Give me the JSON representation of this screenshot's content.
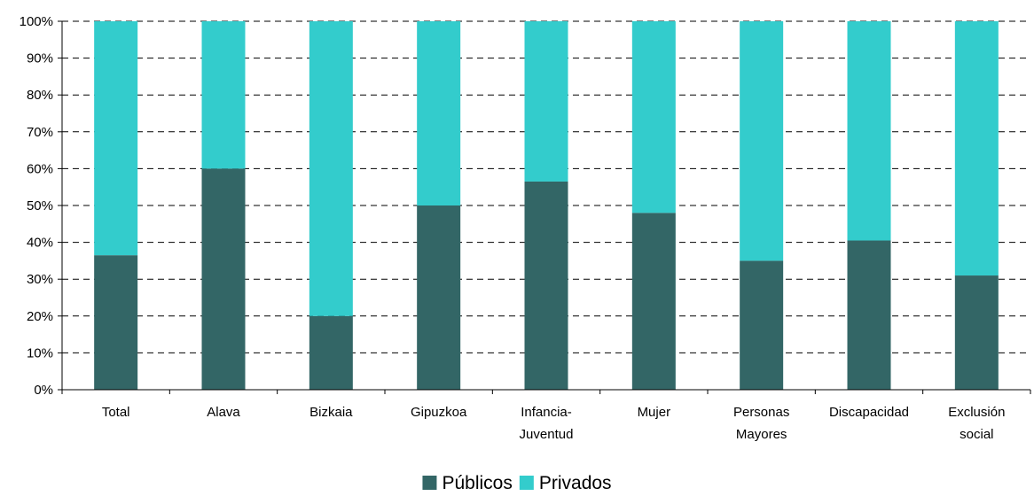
{
  "chart_data": {
    "type": "bar",
    "stacked": true,
    "percent": true,
    "categories": [
      [
        "Total"
      ],
      [
        "Alava"
      ],
      [
        "Bizkaia"
      ],
      [
        "Gipuzkoa"
      ],
      [
        "Infancia-",
        "Juventud"
      ],
      [
        "Mujer"
      ],
      [
        "Personas",
        "Mayores"
      ],
      [
        "Discapacidad"
      ],
      [
        "Exclusión",
        "social"
      ]
    ],
    "series": [
      {
        "name": "Públicos",
        "color": "#336666",
        "values": [
          36.5,
          60.0,
          20.0,
          50.0,
          56.5,
          48.0,
          35.0,
          40.5,
          31.0
        ]
      },
      {
        "name": "Privados",
        "color": "#33CCCC",
        "values": [
          63.5,
          40.0,
          80.0,
          50.0,
          43.5,
          52.0,
          65.0,
          59.5,
          69.0
        ]
      }
    ],
    "yticks": [
      "0%",
      "10%",
      "20%",
      "30%",
      "40%",
      "50%",
      "60%",
      "70%",
      "80%",
      "90%",
      "100%"
    ],
    "ylim": [
      0,
      100
    ],
    "grid": true,
    "legend_position": "bottom-center"
  }
}
